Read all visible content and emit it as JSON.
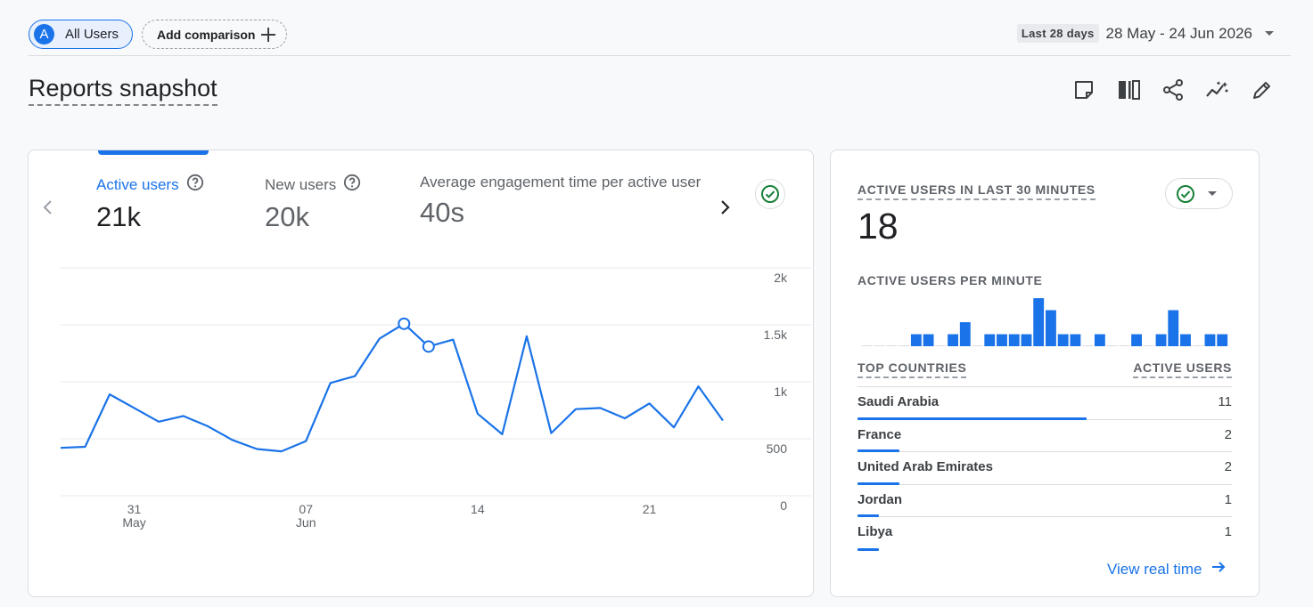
{
  "header": {
    "segment_avatar": "A",
    "segment_label": "All Users",
    "add_comparison_label": "Add comparison",
    "date_badge": "Last 28 days",
    "date_range": "28 May - 24 Jun 2026"
  },
  "page_title": "Reports snapshot",
  "metrics": [
    {
      "label": "Active users",
      "value": "21k"
    },
    {
      "label": "New users",
      "value": "20k"
    },
    {
      "label": "Average engagement time per active user",
      "value": "40s"
    }
  ],
  "chart_data": {
    "type": "line",
    "title": "",
    "xlabel": "",
    "ylabel": "",
    "ylim": [
      0,
      2000
    ],
    "yticks": [
      "0",
      "500",
      "1k",
      "1.5k",
      "2k"
    ],
    "xticks": [
      {
        "day": "31",
        "month": "May"
      },
      {
        "day": "07",
        "month": "Jun"
      },
      {
        "day": "14",
        "month": ""
      },
      {
        "day": "21",
        "month": ""
      }
    ],
    "x": [
      "28 May",
      "29 May",
      "30 May",
      "31 May",
      "01 Jun",
      "02 Jun",
      "03 Jun",
      "04 Jun",
      "05 Jun",
      "06 Jun",
      "07 Jun",
      "08 Jun",
      "09 Jun",
      "10 Jun",
      "11 Jun",
      "12 Jun",
      "13 Jun",
      "14 Jun",
      "15 Jun",
      "16 Jun",
      "17 Jun",
      "18 Jun",
      "19 Jun",
      "20 Jun",
      "21 Jun",
      "22 Jun",
      "23 Jun",
      "24 Jun",
      "25 Jun"
    ],
    "series": [
      {
        "values": [
          420,
          430,
          890,
          770,
          650,
          700,
          610,
          490,
          410,
          390,
          480,
          990,
          1050,
          1380,
          1510,
          1310,
          1370,
          720,
          540,
          1400,
          550,
          760,
          770,
          680,
          810,
          600,
          960,
          660,
          null
        ],
        "color": "#1a73e8"
      }
    ],
    "markers": [
      14,
      15
    ],
    "grid": true
  },
  "realtime": {
    "title": "ACTIVE USERS IN LAST 30 MINUTES",
    "value": "18",
    "per_minute_title": "ACTIVE USERS PER MINUTE",
    "per_minute_values": [
      0,
      0,
      0,
      0,
      1,
      1,
      0,
      1,
      2,
      0,
      1,
      1,
      1,
      1,
      4,
      3,
      1,
      1,
      0,
      1,
      0,
      0,
      1,
      0,
      1,
      3,
      1,
      0,
      1,
      1
    ]
  },
  "countries": {
    "header_left": "TOP COUNTRIES",
    "header_right": "ACTIVE USERS",
    "rows": [
      {
        "name": "Saudi Arabia",
        "value": "11",
        "share": 0.611
      },
      {
        "name": "France",
        "value": "2",
        "share": 0.111
      },
      {
        "name": "United Arab Emirates",
        "value": "2",
        "share": 0.111
      },
      {
        "name": "Jordan",
        "value": "1",
        "share": 0.056
      },
      {
        "name": "Libya",
        "value": "1",
        "share": 0.056
      }
    ]
  },
  "view_realtime_label": "View real time",
  "colors": {
    "accent": "#1a73e8",
    "success": "#188038"
  }
}
